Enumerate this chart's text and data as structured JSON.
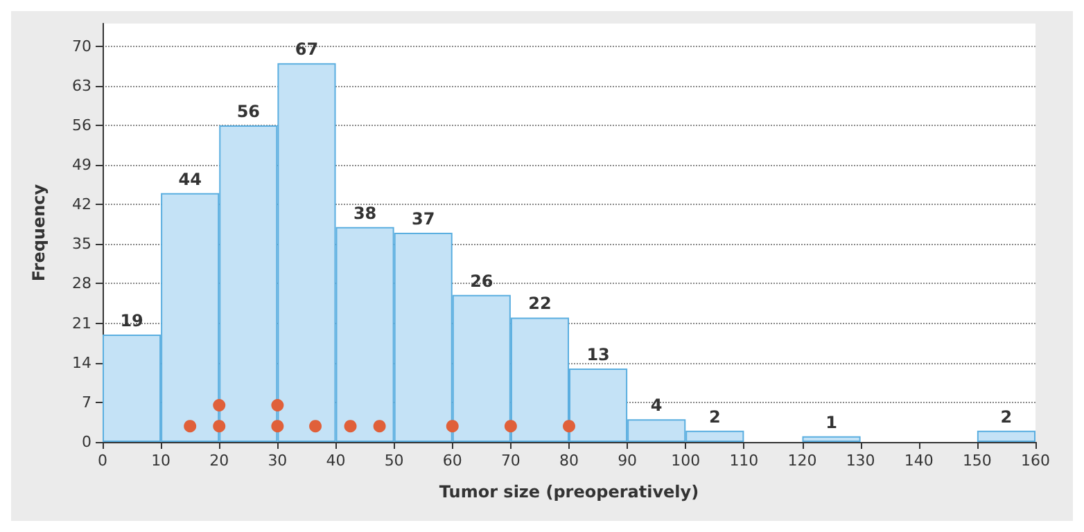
{
  "chart_data": {
    "type": "histogram",
    "xlabel": "Tumor size (preoperatively)",
    "ylabel": "Frequency",
    "bins": [
      0,
      10,
      20,
      30,
      40,
      50,
      60,
      70,
      80,
      90,
      100,
      110,
      120,
      130,
      140,
      150,
      160
    ],
    "values": [
      19,
      44,
      56,
      67,
      38,
      37,
      26,
      22,
      13,
      4,
      2,
      0,
      1,
      0,
      0,
      2
    ],
    "value_labels": [
      "19",
      "44",
      "56",
      "67",
      "38",
      "37",
      "26",
      "22",
      "13",
      "4",
      "2",
      null,
      "1",
      null,
      null,
      "2"
    ],
    "color": "#c4e2f6",
    "series": [
      {
        "type": "scatter",
        "color": "#e0603a",
        "x": [
          15,
          20,
          20,
          30,
          30,
          36.5,
          42.5,
          47.5,
          60,
          70,
          80
        ],
        "values": [
          2.8,
          2.8,
          6.5,
          2.8,
          6.5,
          2.8,
          2.8,
          2.8,
          2.8,
          2.8,
          2.8
        ]
      }
    ],
    "marker": "circle",
    "xlim": [
      0,
      160
    ],
    "xticks": [
      0,
      10,
      20,
      30,
      40,
      50,
      60,
      70,
      80,
      90,
      100,
      110,
      120,
      130,
      140,
      150,
      160
    ],
    "ylim": [
      0,
      74
    ],
    "yticks": [
      0,
      7,
      14,
      21,
      28,
      35,
      42,
      49,
      56,
      63,
      70
    ],
    "grid": "y"
  }
}
